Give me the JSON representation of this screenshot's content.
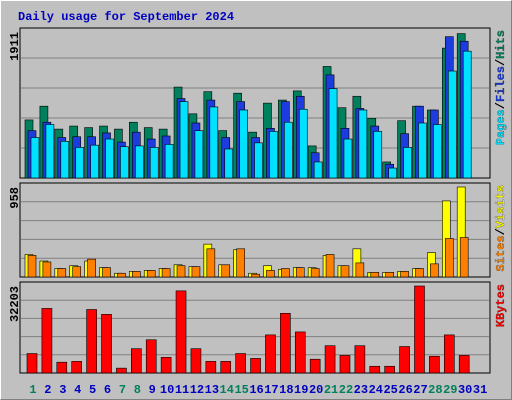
{
  "title": "Daily usage for September 2024",
  "label_color": "#00805c",
  "weekday_color": "#0000c0",
  "weekends": [
    0,
    6,
    7,
    13,
    14,
    20,
    21,
    27,
    28
  ],
  "chart_data": [
    {
      "type": "bar",
      "legend_separator": "/",
      "ylim": [
        0,
        1911
      ],
      "yticks": [
        1911
      ],
      "series": [
        {
          "name": "Hits",
          "color": "#00805c",
          "values": [
            760,
            940,
            640,
            680,
            660,
            680,
            640,
            730,
            660,
            640,
            1190,
            840,
            1130,
            620,
            1110,
            600,
            980,
            1020,
            1140,
            420,
            1460,
            920,
            1070,
            780,
            210,
            750,
            940,
            890,
            1700,
            1890,
            null
          ]
        },
        {
          "name": "Files",
          "color": "#1c3ce0",
          "values": [
            620,
            730,
            530,
            540,
            540,
            590,
            470,
            600,
            510,
            550,
            1040,
            720,
            1020,
            530,
            1000,
            530,
            650,
            1000,
            1070,
            330,
            1350,
            650,
            910,
            680,
            180,
            580,
            940,
            890,
            1850,
            1790,
            null
          ]
        },
        {
          "name": "Pages",
          "color": "#00e0ff",
          "values": [
            530,
            700,
            480,
            400,
            430,
            510,
            410,
            420,
            400,
            440,
            1000,
            620,
            930,
            380,
            890,
            460,
            610,
            730,
            900,
            210,
            1170,
            510,
            890,
            610,
            130,
            400,
            720,
            700,
            1400,
            1660,
            null
          ]
        }
      ]
    },
    {
      "type": "bar",
      "legend_separator": "/",
      "ylim": [
        0,
        958
      ],
      "yticks": [
        958
      ],
      "series": [
        {
          "name": "Visits",
          "color": "#ffff00",
          "values": [
            240,
            170,
            90,
            120,
            170,
            100,
            40,
            60,
            70,
            90,
            130,
            110,
            350,
            130,
            290,
            40,
            120,
            80,
            100,
            100,
            230,
            120,
            300,
            50,
            50,
            60,
            90,
            260,
            810,
            958,
            null
          ]
        },
        {
          "name": "Sites",
          "color": "#ff8000",
          "values": [
            230,
            160,
            90,
            110,
            190,
            100,
            40,
            60,
            70,
            90,
            120,
            110,
            300,
            130,
            300,
            30,
            70,
            90,
            100,
            90,
            240,
            120,
            150,
            50,
            50,
            60,
            90,
            140,
            410,
            420,
            null
          ]
        }
      ]
    },
    {
      "type": "bar",
      "ylim": [
        0,
        32203
      ],
      "yticks": [
        32203
      ],
      "categories": [
        "1",
        "2",
        "3",
        "4",
        "5",
        "6",
        "7",
        "8",
        "9",
        "10",
        "11",
        "12",
        "13",
        "14",
        "15",
        "16",
        "17",
        "18",
        "19",
        "20",
        "21",
        "22",
        "23",
        "24",
        "25",
        "26",
        "27",
        "28",
        "29",
        "30",
        "31"
      ],
      "series": [
        {
          "name": "KBytes",
          "color": "#ff0000",
          "values": [
            7200,
            23900,
            4000,
            4300,
            23500,
            21700,
            1800,
            9000,
            12300,
            5800,
            30400,
            9000,
            4300,
            4300,
            7200,
            5400,
            14100,
            22100,
            15200,
            5100,
            10100,
            6500,
            10100,
            2500,
            2500,
            9800,
            32203,
            6200,
            14100,
            6500,
            null
          ]
        }
      ]
    }
  ]
}
